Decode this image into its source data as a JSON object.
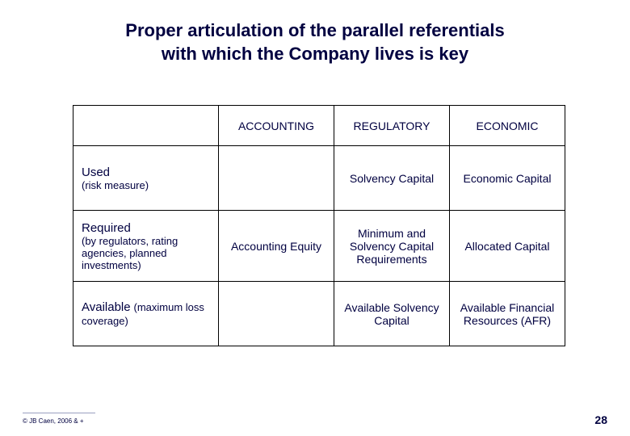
{
  "title": {
    "line1": "Proper articulation of the parallel referentials",
    "line2": "with which the Company lives is key"
  },
  "table": {
    "headers": {
      "blank": "",
      "accounting": "ACCOUNTING",
      "regulatory": "REGULATORY",
      "economic": "ECONOMIC"
    },
    "rows": {
      "used": {
        "label_strong": "Used",
        "label_sub": "(risk measure)",
        "accounting": "",
        "regulatory": "Solvency Capital",
        "economic": "Economic Capital"
      },
      "required": {
        "label_strong": "Required",
        "label_sub": "(by regulators, rating agencies, planned investments)",
        "accounting": "Accounting Equity",
        "regulatory": "Minimum and Solvency Capital Requirements",
        "economic": "Allocated Capital"
      },
      "available": {
        "label_strong": "Available",
        "label_sub_inline": "(maximum loss coverage)",
        "accounting": "",
        "regulatory": "Available Solvency Capital",
        "economic": "Available Financial Resources (AFR)"
      }
    }
  },
  "footer": {
    "copyright": "© JB Caen, 2006 & +",
    "page": "28"
  },
  "style": {
    "title_color": "#000040",
    "border_color": "#000000",
    "text_color": "#000040",
    "background": "#ffffff",
    "title_fontsize": 22,
    "cell_fontsize": 14
  }
}
